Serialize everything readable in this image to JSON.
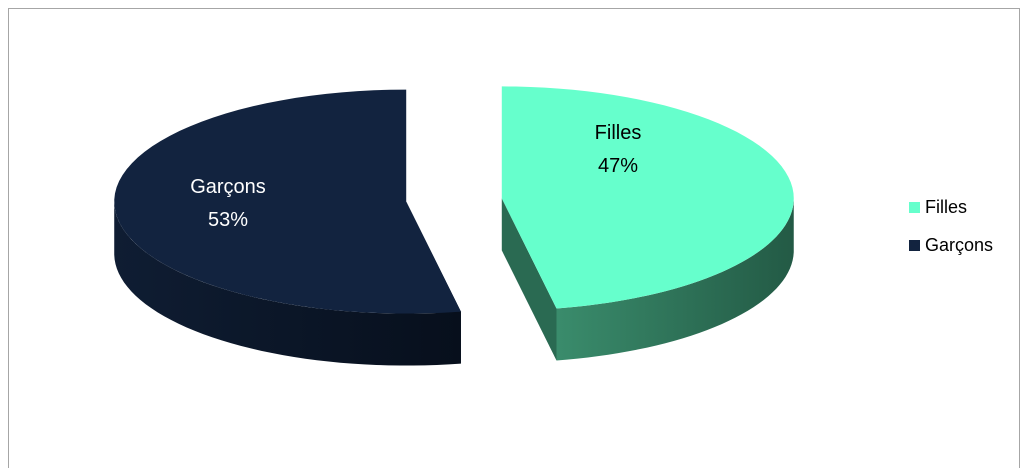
{
  "chart_data": {
    "type": "pie",
    "title": "",
    "three_d": true,
    "exploded": true,
    "legend_position": "right",
    "slices": [
      {
        "name": "Filles",
        "value": 47,
        "label_line1": "Filles",
        "label_line2": "47%",
        "color": "#66ffcc",
        "side_color": "#2a6a52",
        "label_color": "#000000"
      },
      {
        "name": "Garçons",
        "value": 53,
        "label_line1": "Garçons",
        "label_line2": "53%",
        "color": "#12233f",
        "side_color": "#0b1628",
        "label_color": "#ffffff"
      }
    ],
    "legend": [
      {
        "label": "Filles",
        "color": "#66ffcc"
      },
      {
        "label": "Garçons",
        "color": "#12233f"
      }
    ]
  }
}
